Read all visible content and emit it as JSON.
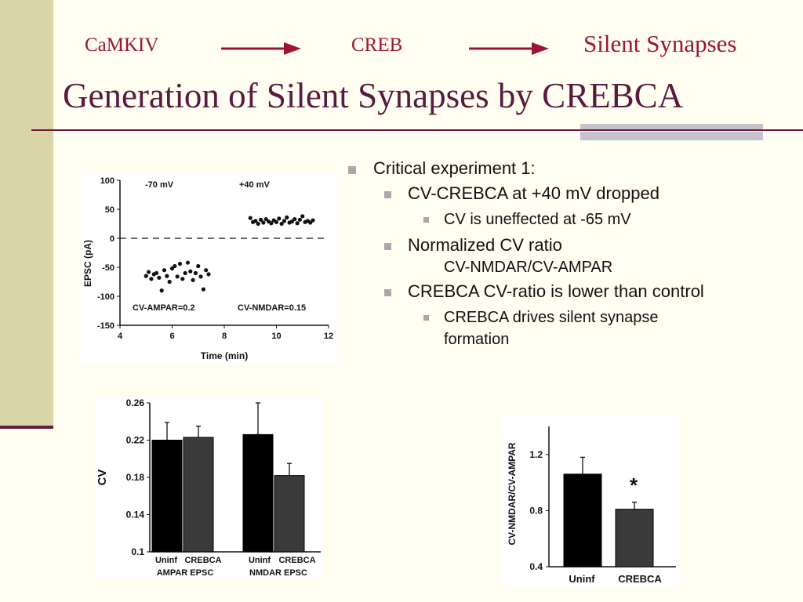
{
  "pathway": {
    "step1": "CaMKIV",
    "step2": "CREB",
    "step3": "Silent Synapses"
  },
  "title": "Generation of Silent Synapses by CREBCA",
  "colors": {
    "accent": "#9c1438",
    "title": "#5a1a40",
    "sidebar": "#d9d6aa",
    "rule": "#6b1a3c"
  },
  "bullets": {
    "l1": "Critical experiment 1:",
    "l2a": "CV-CREBCA at +40 mV dropped",
    "l3a": "CV is uneffected at -65 mV",
    "l2b": "Normalized CV ratio",
    "l2b_cont": "CV-NMDAR/CV-AMPAR",
    "l2c": "CREBCA CV-ratio is lower than control",
    "l3c": "CREBCA drives silent synapse formation"
  },
  "chart_data": [
    {
      "type": "scatter",
      "xlabel": "Time (min)",
      "ylabel": "EPSC (pA)",
      "xlim": [
        4,
        12
      ],
      "ylim": [
        -150,
        100
      ],
      "xticks": [
        "4",
        "6",
        "8",
        "10",
        "12"
      ],
      "yticks": [
        "100",
        "50",
        "0",
        "-50",
        "-100",
        "-150"
      ],
      "annotations": [
        "-70 mV",
        "+40 mV",
        "CV-AMPAR=0.2",
        "CV-NMDAR=0.15"
      ],
      "series": [
        {
          "x": [
            5.0,
            5.1,
            5.2,
            5.3,
            5.4,
            5.5,
            5.6,
            5.7,
            5.8,
            5.9,
            6.0,
            6.1,
            6.2,
            6.3,
            6.4,
            6.5,
            6.6,
            6.7,
            6.8,
            6.9,
            7.0,
            7.1,
            7.2,
            7.3,
            7.4
          ],
          "y": [
            -65,
            -58,
            -70,
            -62,
            -60,
            -68,
            -90,
            -55,
            -65,
            -75,
            -52,
            -48,
            -66,
            -44,
            -70,
            -60,
            -42,
            -57,
            -72,
            -60,
            -48,
            -66,
            -88,
            -55,
            -62
          ]
        },
        {
          "x": [
            9.0,
            9.1,
            9.2,
            9.3,
            9.4,
            9.5,
            9.6,
            9.7,
            9.8,
            9.9,
            10.0,
            10.1,
            10.2,
            10.3,
            10.4,
            10.5,
            10.6,
            10.7,
            10.8,
            10.9,
            11.0,
            11.1,
            11.2,
            11.3,
            11.4
          ],
          "y": [
            35,
            28,
            30,
            25,
            32,
            27,
            33,
            29,
            26,
            31,
            28,
            34,
            25,
            30,
            36,
            27,
            29,
            33,
            26,
            32,
            38,
            28,
            30,
            27,
            31
          ]
        }
      ]
    },
    {
      "type": "bar",
      "ylabel": "CV",
      "ylim": [
        0.1,
        0.26
      ],
      "yticks": [
        "0.26",
        "0.22",
        "0.18",
        "0.14",
        "0.1"
      ],
      "categories": [
        "Uninf",
        "CREBCA",
        "Uninf",
        "CREBCA"
      ],
      "groups": [
        "AMPAR EPSC",
        "NMDAR EPSC"
      ],
      "values": [
        0.22,
        0.223,
        0.226,
        0.182
      ],
      "errors": [
        0.019,
        0.012,
        0.034,
        0.013
      ]
    },
    {
      "type": "bar",
      "ylabel": "CV-NMDAR/CV-AMPAR",
      "ylim": [
        0.4,
        1.4
      ],
      "yticks": [
        "1.2",
        "0.8",
        "0.4"
      ],
      "categories": [
        "Uninf",
        "CREBCA"
      ],
      "values": [
        1.06,
        0.81
      ],
      "errors": [
        0.12,
        0.05
      ],
      "annotations": [
        "*"
      ]
    }
  ]
}
